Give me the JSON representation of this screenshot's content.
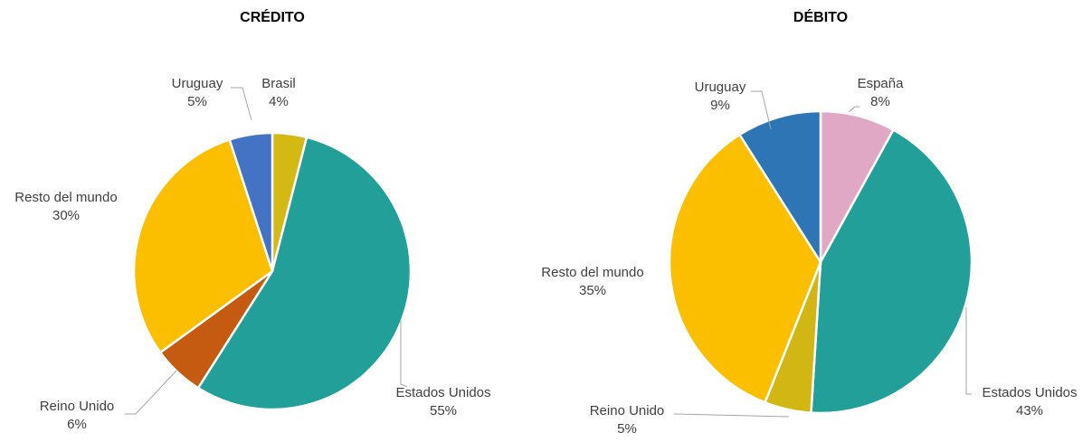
{
  "chart_data": [
    {
      "type": "pie",
      "title": "CRÉDITO",
      "categories": [
        "Brasil",
        "Estados Unidos",
        "Reino Unido",
        "Resto del mundo",
        "Uruguay"
      ],
      "values": [
        4,
        55,
        6,
        30,
        5
      ],
      "value_labels": [
        "4%",
        "55%",
        "6%",
        "30%",
        "5%"
      ],
      "colors": [
        "#d4b914",
        "#229f98",
        "#c55a11",
        "#fcbf00",
        "#4472c4"
      ]
    },
    {
      "type": "pie",
      "title": "DÉBITO",
      "categories": [
        "España",
        "Estados Unidos",
        "Reino Unido",
        "Resto del mundo",
        "Uruguay"
      ],
      "values": [
        8,
        43,
        5,
        35,
        9
      ],
      "value_labels": [
        "8%",
        "43%",
        "5%",
        "35%",
        "9%"
      ],
      "colors": [
        "#e1a8c6",
        "#229f98",
        "#d2b714",
        "#fcbf00",
        "#2e75b6"
      ]
    }
  ]
}
